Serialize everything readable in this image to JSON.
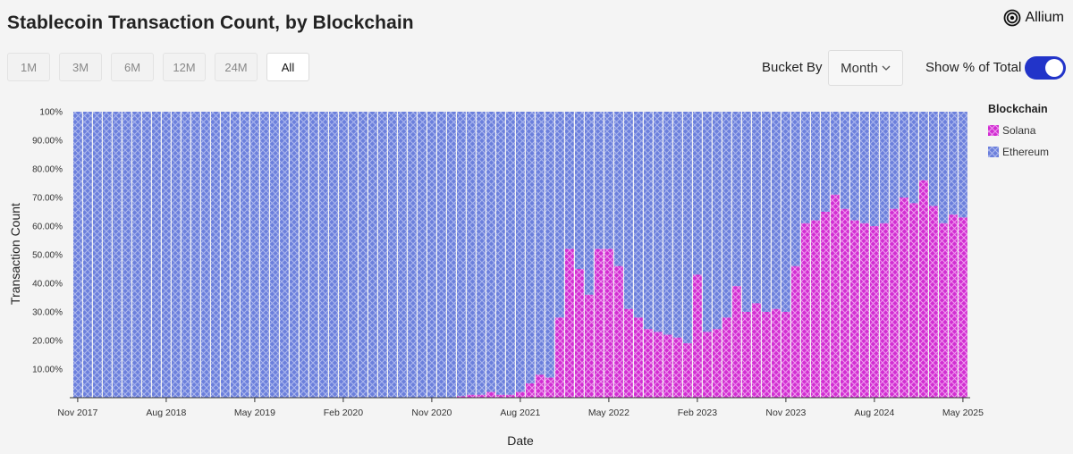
{
  "header": {
    "title": "Stablecoin Transaction Count, by Blockchain",
    "brand": "Allium"
  },
  "controls": {
    "ranges": [
      "1M",
      "3M",
      "6M",
      "12M",
      "24M",
      "All"
    ],
    "active_range": "All",
    "bucket_label": "Bucket By",
    "bucket_value": "Month",
    "toggle_label": "Show % of Total",
    "toggle_on": true
  },
  "colors": {
    "solana": "#d22ed2",
    "ethereum": "#6b7fdc",
    "toggle": "#2234c9"
  },
  "chart_data": {
    "type": "bar",
    "stacked": true,
    "title": "Stablecoin Transaction Count, by Blockchain",
    "xlabel": "Date",
    "ylabel": "Transaction Count",
    "ylim": [
      0,
      100
    ],
    "y_ticks": [
      "10.00%",
      "20.00%",
      "30.00%",
      "40.00%",
      "50.00%",
      "60.00%",
      "70.00%",
      "80.00%",
      "90.00%",
      "100%"
    ],
    "x_ticks": [
      "Nov 2017",
      "Aug 2018",
      "May 2019",
      "Feb 2020",
      "Nov 2020",
      "Aug 2021",
      "May 2022",
      "Feb 2023",
      "Nov 2023",
      "Aug 2024",
      "May 2025"
    ],
    "x_tick_index": [
      0,
      9,
      18,
      27,
      36,
      45,
      54,
      63,
      72,
      81,
      90
    ],
    "legend_title": "Blockchain",
    "legend": [
      "Solana",
      "Ethereum"
    ],
    "legend_position": "right",
    "start_month": "Nov 2017",
    "series": [
      {
        "name": "Solana",
        "values": [
          0,
          0,
          0,
          0,
          0,
          0,
          0,
          0,
          0,
          0,
          0,
          0,
          0,
          0,
          0,
          0,
          0,
          0,
          0,
          0,
          0,
          0,
          0,
          0,
          0,
          0,
          0,
          0,
          0,
          0,
          0,
          0,
          0,
          0,
          0,
          0,
          0,
          0,
          0,
          0.5,
          1,
          1,
          2,
          1,
          1,
          2,
          5,
          8,
          7,
          28,
          52,
          45,
          36,
          52,
          52,
          46,
          31,
          28,
          24,
          23,
          22,
          21,
          19,
          43,
          23,
          24,
          28,
          39,
          30,
          33,
          30,
          31,
          30,
          46,
          61,
          62,
          65,
          71,
          66,
          62,
          61,
          60,
          61,
          66,
          70,
          68,
          76,
          67,
          61,
          64,
          63
        ]
      },
      {
        "name": "Ethereum",
        "values": [
          100,
          100,
          100,
          100,
          100,
          100,
          100,
          100,
          100,
          100,
          100,
          100,
          100,
          100,
          100,
          100,
          100,
          100,
          100,
          100,
          100,
          100,
          100,
          100,
          100,
          100,
          100,
          100,
          100,
          100,
          100,
          100,
          100,
          100,
          100,
          100,
          100,
          100,
          100,
          99.5,
          99,
          99,
          98,
          99,
          99,
          98,
          95,
          92,
          93,
          72,
          48,
          55,
          64,
          48,
          48,
          54,
          69,
          72,
          76,
          77,
          78,
          79,
          81,
          57,
          77,
          76,
          72,
          61,
          70,
          67,
          70,
          69,
          70,
          54,
          39,
          38,
          35,
          29,
          34,
          38,
          39,
          40,
          39,
          34,
          30,
          32,
          24,
          33,
          39,
          36,
          37
        ]
      }
    ]
  }
}
